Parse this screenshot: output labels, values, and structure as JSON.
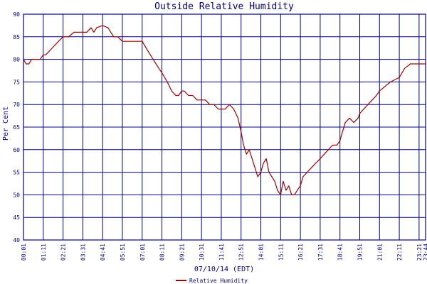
{
  "chart_data": {
    "type": "line",
    "title": "Outside Relative Humidity",
    "xlabel": "07/10/14 (EDT)",
    "ylabel": "Per Cent",
    "ylim": [
      40,
      90
    ],
    "yticks": [
      40,
      45,
      50,
      55,
      60,
      65,
      70,
      75,
      80,
      85,
      90
    ],
    "xlim": [
      "00:01",
      "23:44"
    ],
    "xticks": [
      "00:01",
      "01:11",
      "02:21",
      "03:31",
      "04:41",
      "05:51",
      "07:01",
      "08:11",
      "09:21",
      "10:31",
      "11:41",
      "12:51",
      "14:01",
      "15:11",
      "16:21",
      "17:31",
      "18:41",
      "19:51",
      "21:01",
      "22:11",
      "23:21",
      "23:44"
    ],
    "grid": true,
    "legend_position": "bottom-center",
    "colors": {
      "grid": "#000080",
      "text": "#000080",
      "line": "#a00000"
    },
    "series": [
      {
        "name": "Relative Humidity",
        "x": [
          "00:01",
          "00:10",
          "00:20",
          "00:30",
          "00:50",
          "01:00",
          "01:11",
          "01:20",
          "01:35",
          "01:50",
          "02:05",
          "02:21",
          "02:40",
          "03:00",
          "03:31",
          "03:45",
          "04:00",
          "04:10",
          "04:20",
          "04:41",
          "05:00",
          "05:10",
          "05:20",
          "05:35",
          "05:51",
          "06:10",
          "06:30",
          "07:01",
          "07:20",
          "07:40",
          "08:00",
          "08:11",
          "08:30",
          "08:45",
          "09:00",
          "09:10",
          "09:21",
          "09:30",
          "09:45",
          "10:00",
          "10:15",
          "10:31",
          "10:45",
          "11:00",
          "11:15",
          "11:30",
          "11:41",
          "11:55",
          "12:10",
          "12:25",
          "12:40",
          "12:51",
          "13:00",
          "13:10",
          "13:20",
          "13:30",
          "13:40",
          "13:50",
          "14:01",
          "14:10",
          "14:20",
          "14:30",
          "14:40",
          "14:50",
          "15:00",
          "15:11",
          "15:20",
          "15:30",
          "15:40",
          "15:50",
          "16:00",
          "16:10",
          "16:21",
          "16:30",
          "16:45",
          "17:00",
          "17:15",
          "17:31",
          "17:45",
          "18:00",
          "18:15",
          "18:30",
          "18:41",
          "18:50",
          "19:00",
          "19:15",
          "19:30",
          "19:45",
          "19:51",
          "20:05",
          "20:20",
          "20:35",
          "20:50",
          "21:01",
          "21:20",
          "21:40",
          "22:11",
          "22:30",
          "22:50",
          "23:21",
          "23:44"
        ],
        "values": [
          80,
          79,
          79,
          80,
          80,
          80,
          81,
          81,
          82,
          83,
          84,
          85,
          85,
          86,
          86,
          86,
          87,
          86,
          87,
          87.5,
          87,
          86,
          85,
          85,
          84,
          84,
          84,
          84,
          82,
          80,
          78,
          77,
          75,
          73,
          72,
          72,
          73,
          73,
          72,
          72,
          71,
          71,
          71,
          70,
          70,
          69,
          69,
          69,
          70,
          69,
          67,
          64,
          61,
          59,
          60,
          58,
          56,
          54,
          55,
          57,
          58,
          55,
          54,
          53,
          51,
          50,
          53,
          51,
          52,
          50,
          50,
          51,
          52,
          54,
          55,
          56,
          57,
          58,
          59,
          60,
          61,
          61,
          62,
          64,
          66,
          67,
          66,
          67,
          68,
          69,
          70,
          71,
          72,
          73,
          74,
          75,
          76,
          78,
          79,
          79,
          79
        ]
      }
    ]
  }
}
